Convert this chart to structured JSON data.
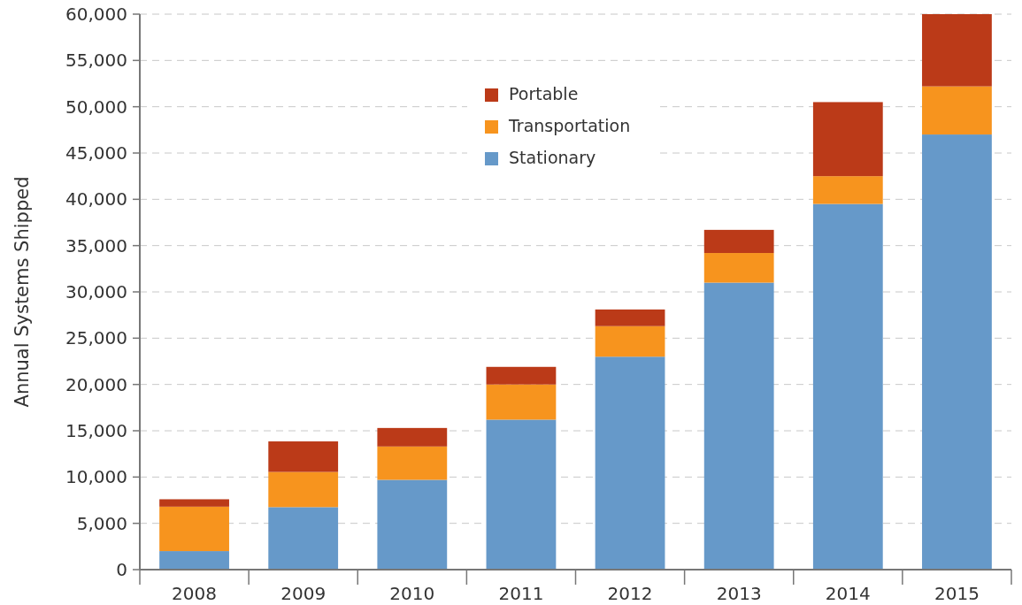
{
  "chart_data": {
    "type": "bar",
    "stacked": true,
    "ylabel": "Annual Systems Shipped",
    "categories": [
      "2008",
      "2009",
      "2010",
      "2011",
      "2012",
      "2013",
      "2014",
      "2015"
    ],
    "series": [
      {
        "name": "Stationary",
        "color": "#6699c9",
        "values": [
          2000,
          6750,
          9700,
          16200,
          23000,
          31000,
          39500,
          47000
        ]
      },
      {
        "name": "Transportation",
        "color": "#f7941e",
        "values": [
          4800,
          3800,
          3600,
          3800,
          3300,
          3200,
          3000,
          5200
        ]
      },
      {
        "name": "Portable",
        "color": "#bb3a18",
        "values": [
          800,
          3300,
          2000,
          1900,
          1800,
          2500,
          8000,
          7800
        ]
      }
    ],
    "ylim": [
      0,
      60000
    ],
    "yticks": [
      {
        "value": 0,
        "label": "0"
      },
      {
        "value": 5000,
        "label": "5,000"
      },
      {
        "value": 10000,
        "label": "10,000"
      },
      {
        "value": 15000,
        "label": "15,000"
      },
      {
        "value": 20000,
        "label": "20,000"
      },
      {
        "value": 25000,
        "label": "25,000"
      },
      {
        "value": 30000,
        "label": "30,000"
      },
      {
        "value": 35000,
        "label": "35,000"
      },
      {
        "value": 40000,
        "label": "40,000"
      },
      {
        "value": 45000,
        "label": "45,000"
      },
      {
        "value": 50000,
        "label": "50,000"
      },
      {
        "value": 55000,
        "label": "55,000"
      },
      {
        "value": 60000,
        "label": "60,000"
      }
    ],
    "grid": "y",
    "legend": "top"
  }
}
